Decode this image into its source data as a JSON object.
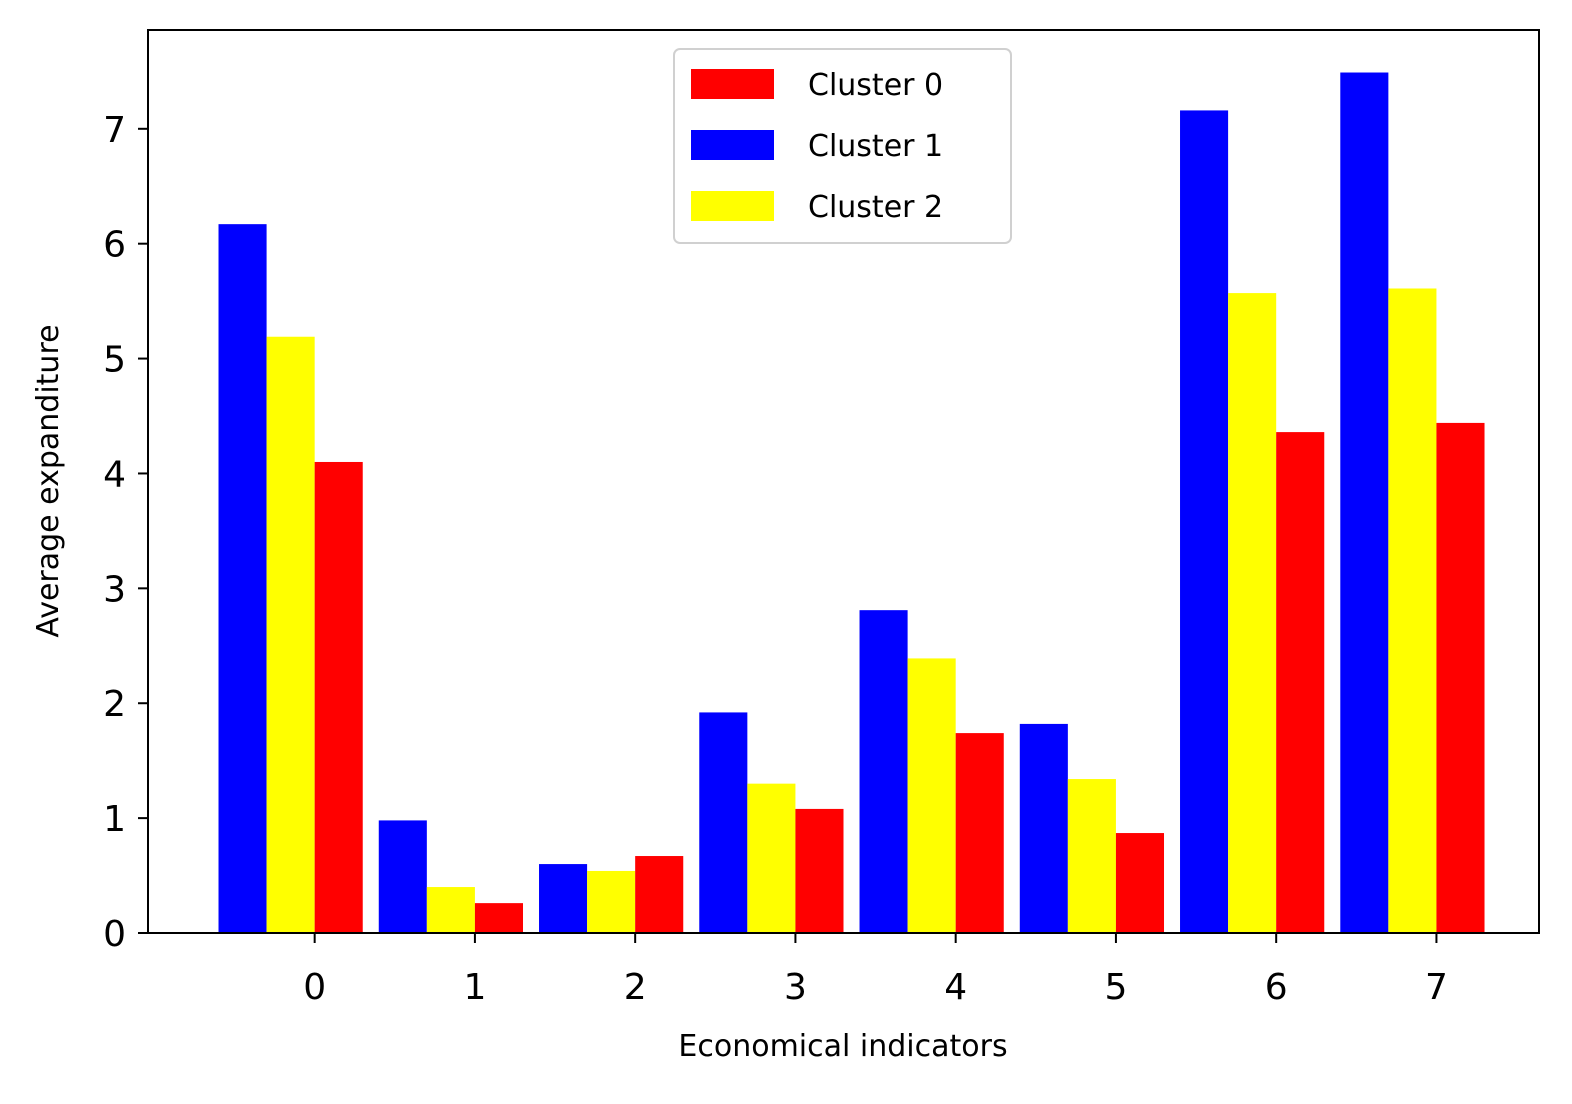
{
  "chart_data": {
    "type": "bar",
    "title": "",
    "xlabel": "Economical indicators",
    "ylabel": "Average expanditure",
    "categories": [
      "0",
      "1",
      "2",
      "3",
      "4",
      "5",
      "6",
      "7"
    ],
    "yticks": [
      "0",
      "1",
      "2",
      "3",
      "4",
      "5",
      "6",
      "7"
    ],
    "ylim": [
      0,
      7.86
    ],
    "xlim": [
      -1.04,
      7.64
    ],
    "grid": false,
    "legend_position": "upper center",
    "legend": [
      {
        "name": "Cluster 0",
        "color": "#ff0000"
      },
      {
        "name": "Cluster 1",
        "color": "#0000ff"
      },
      {
        "name": "Cluster 2",
        "color": "#ffff00"
      }
    ],
    "bar_draw_order": [
      "Cluster 1",
      "Cluster 2",
      "Cluster 0"
    ],
    "series": [
      {
        "name": "Cluster 0",
        "color": "#ff0000",
        "values": [
          4.1,
          0.26,
          0.67,
          1.08,
          1.74,
          0.87,
          4.36,
          4.44
        ]
      },
      {
        "name": "Cluster 1",
        "color": "#0000ff",
        "values": [
          6.17,
          0.98,
          0.6,
          1.92,
          2.81,
          1.82,
          7.16,
          7.49
        ]
      },
      {
        "name": "Cluster 2",
        "color": "#ffff00",
        "values": [
          5.19,
          0.4,
          0.54,
          1.3,
          2.39,
          1.34,
          5.57,
          5.61
        ]
      }
    ]
  }
}
